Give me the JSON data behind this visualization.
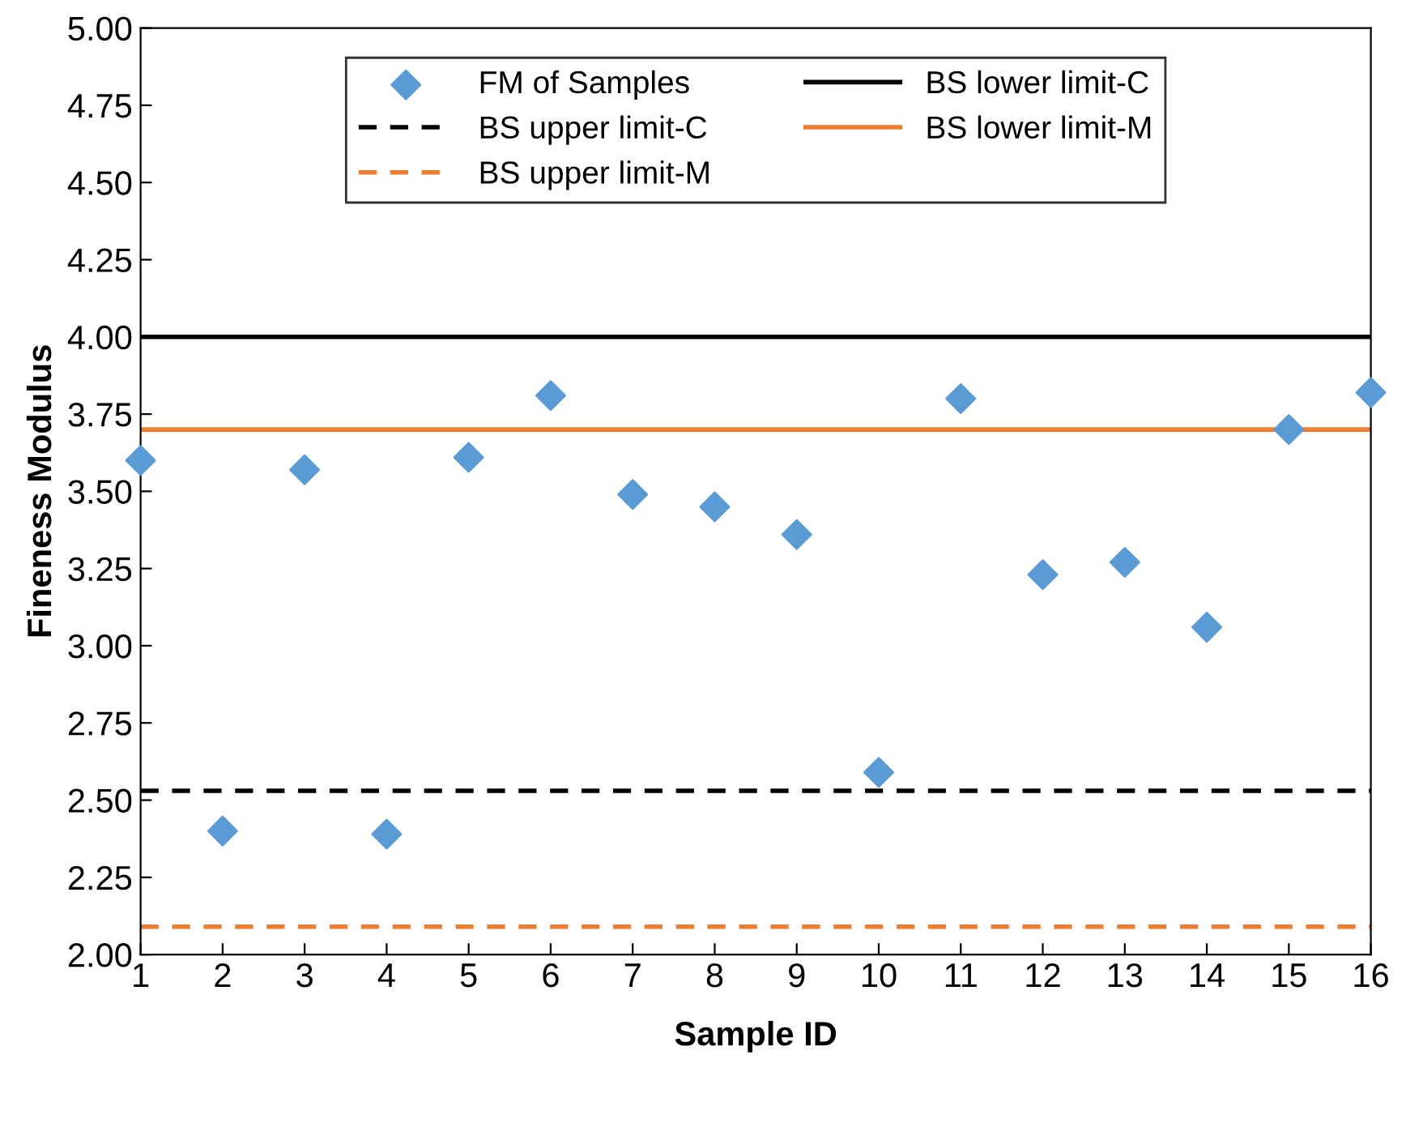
{
  "chart_data": {
    "type": "scatter",
    "xlabel": "Sample ID",
    "ylabel": "Fineness Modulus",
    "x": [
      1,
      2,
      3,
      4,
      5,
      6,
      7,
      8,
      9,
      10,
      11,
      12,
      13,
      14,
      15,
      16
    ],
    "series": [
      {
        "name": "FM of Samples",
        "color": "#5b9bd5",
        "values": [
          3.6,
          2.4,
          3.57,
          2.39,
          3.61,
          3.81,
          3.49,
          3.45,
          3.36,
          2.59,
          3.8,
          3.23,
          3.27,
          3.06,
          3.7,
          3.82
        ]
      }
    ],
    "ref_lines": [
      {
        "axis": "y",
        "value": 4.0,
        "label": "BS lower limit-C",
        "color": "#000000",
        "line_style": "solid"
      },
      {
        "axis": "y",
        "value": 2.53,
        "label": "BS upper limit-C",
        "color": "#000000",
        "line_style": "dashed"
      },
      {
        "axis": "y",
        "value": 3.7,
        "label": "BS lower limit-M",
        "color": "#ed7d31",
        "line_style": "solid"
      },
      {
        "axis": "y",
        "value": 2.09,
        "label": "BS upper limit-M",
        "color": "#ed7d31",
        "line_style": "dashed"
      }
    ],
    "xlim": [
      1,
      16
    ],
    "xticks": [
      1,
      2,
      3,
      4,
      5,
      6,
      7,
      8,
      9,
      10,
      11,
      12,
      13,
      14,
      15,
      16
    ],
    "ylim": [
      2.0,
      5.0
    ],
    "yticks": [
      {
        "value": 2.0,
        "label": "2.00"
      },
      {
        "value": 2.25,
        "label": "2.25"
      },
      {
        "value": 2.5,
        "label": "2.50"
      },
      {
        "value": 2.75,
        "label": "2.75"
      },
      {
        "value": 3.0,
        "label": "3.00"
      },
      {
        "value": 3.25,
        "label": "3.25"
      },
      {
        "value": 3.5,
        "label": "3.50"
      },
      {
        "value": 3.75,
        "label": "3.75"
      },
      {
        "value": 4.0,
        "label": "4.00"
      },
      {
        "value": 4.25,
        "label": "4.25"
      },
      {
        "value": 4.5,
        "label": "4.50"
      },
      {
        "value": 4.75,
        "label": "4.75"
      },
      {
        "value": 5.0,
        "label": "5.00"
      }
    ],
    "marker": "diamond",
    "grid": false,
    "legend": "top"
  }
}
